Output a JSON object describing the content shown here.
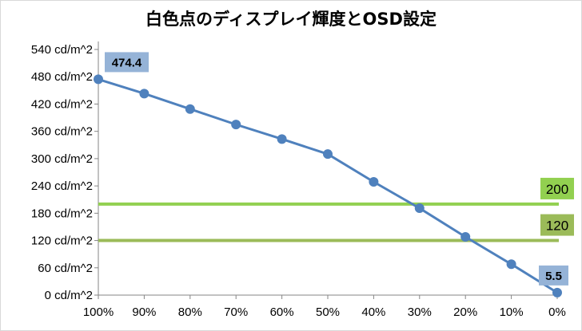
{
  "chart_data": {
    "type": "line",
    "title": "白色点のディスプレイ輝度とOSD設定",
    "xlabel": "",
    "ylabel": "",
    "x": [
      "100%",
      "90%",
      "80%",
      "70%",
      "60%",
      "50%",
      "40%",
      "30%",
      "20%",
      "10%",
      "0%"
    ],
    "y_tick_labels": [
      "0 cd/m^2",
      "60 cd/m^2",
      "120 cd/m^2",
      "180 cd/m^2",
      "240 cd/m^2",
      "300 cd/m^2",
      "360 cd/m^2",
      "420 cd/m^2",
      "480 cd/m^2",
      "540 cd/m^2"
    ],
    "ylim": [
      0,
      540
    ],
    "y_tick_step": 60,
    "grid": false,
    "legend": "none",
    "series": [
      {
        "values": [
          474.4,
          443,
          409,
          375,
          343,
          310,
          249,
          191,
          128,
          68,
          5.5
        ],
        "color": "#4f81bd"
      }
    ],
    "data_labels": [
      {
        "index": 0,
        "text": "474.4"
      },
      {
        "index": 10,
        "text": "5.5"
      }
    ],
    "data_label_color": "#95b3d7",
    "reference_lines": [
      {
        "value": 200,
        "label": "200",
        "color": "#92d050",
        "label_bg": "#92d050"
      },
      {
        "value": 120,
        "label": "120",
        "color": "#9bbb59",
        "label_bg": "#9bbb59"
      }
    ],
    "axis_color": "#868686"
  }
}
